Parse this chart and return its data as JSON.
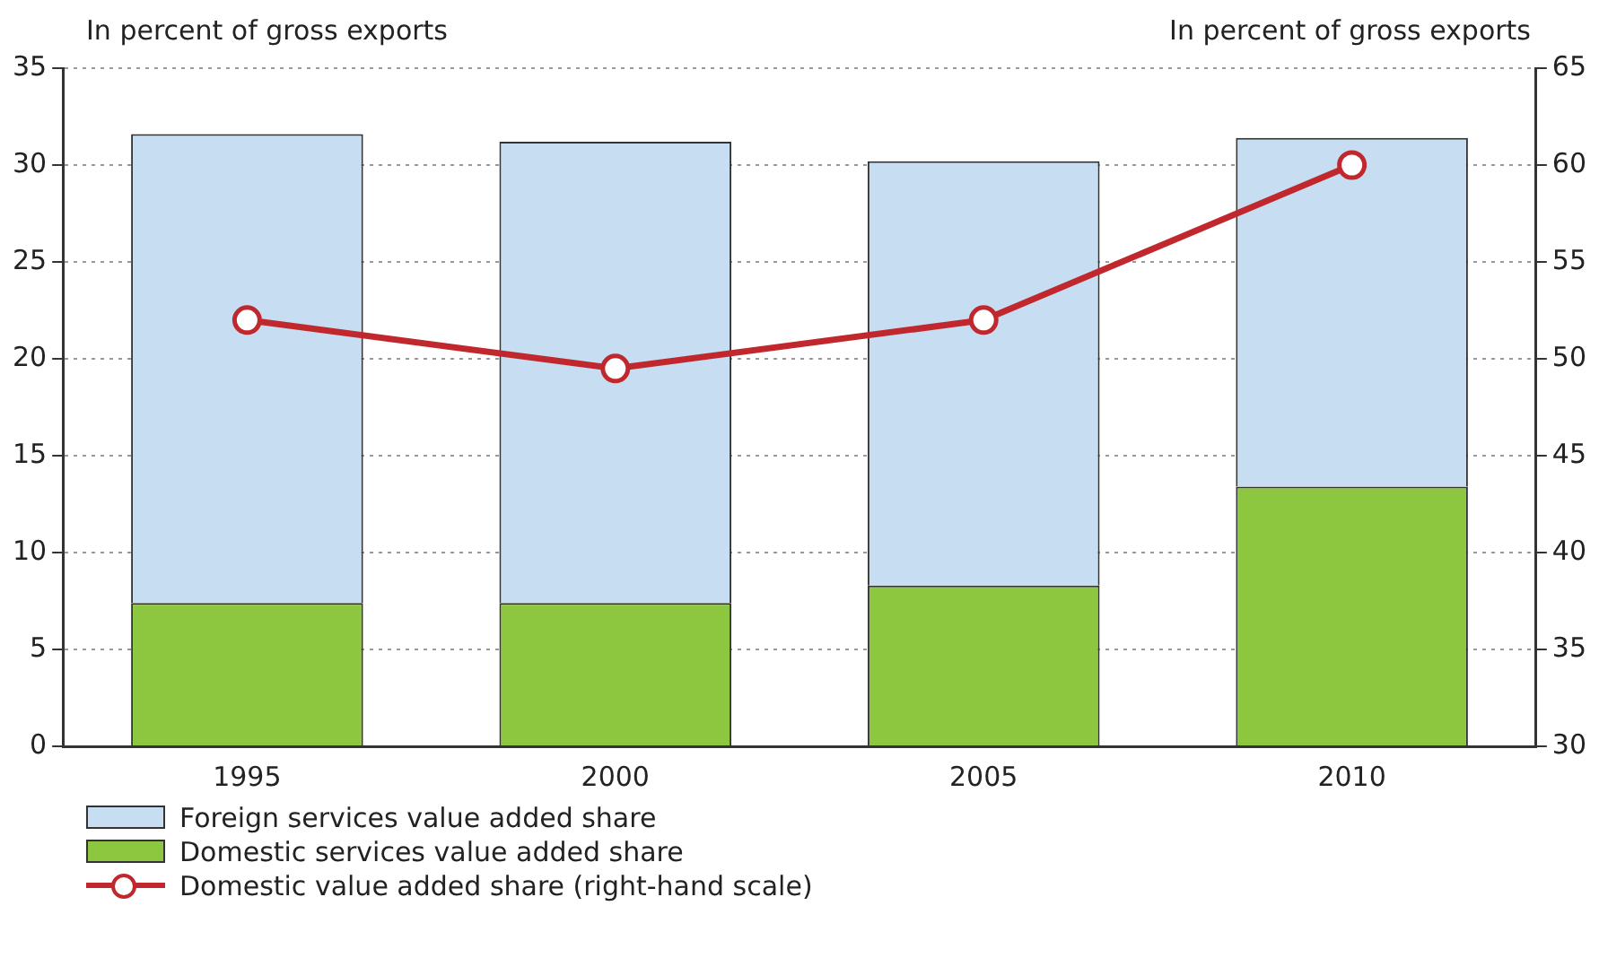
{
  "chart_data": {
    "type": "bar",
    "stacked": true,
    "ylabel": "In percent of gross exports",
    "y2label": "In percent of gross exports",
    "categories": [
      "1995",
      "2000",
      "2005",
      "2010"
    ],
    "series": [
      {
        "name": "Domestic services value added share",
        "color": "#8dc63f",
        "values": [
          7.4,
          7.4,
          8.3,
          13.4
        ]
      },
      {
        "name": "Foreign services value added share",
        "color": "#c6ddf2",
        "values": [
          24.2,
          23.8,
          21.9,
          18.0
        ]
      },
      {
        "name": "Domestic value added share (right-hand scale)",
        "type": "line",
        "axis": "y2",
        "color": "#c0282d",
        "values": [
          52.0,
          49.5,
          52.0,
          60.0
        ]
      }
    ],
    "ylim": [
      0,
      35
    ],
    "yticks": [
      0,
      5,
      10,
      15,
      20,
      25,
      30,
      35
    ],
    "y2lim": [
      30,
      65
    ],
    "y2ticks": [
      30,
      35,
      40,
      45,
      50,
      55,
      60,
      65
    ],
    "grid": "y",
    "legend": "bottom left",
    "marker": "circle",
    "line_style": "solid"
  }
}
